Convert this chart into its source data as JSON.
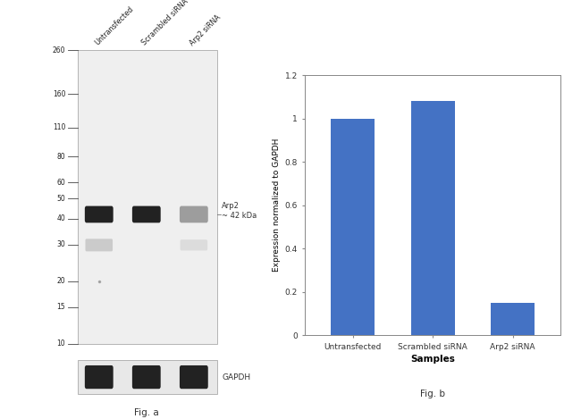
{
  "fig_width": 6.5,
  "fig_height": 4.69,
  "bg_color": "#ffffff",
  "wb_panel": {
    "ladder_marks": [
      260,
      160,
      110,
      80,
      60,
      50,
      40,
      30,
      20,
      15,
      10
    ],
    "band_label": "Arp2\n~ 42 kDa",
    "gapdh_label": "GAPDH",
    "fig_label": "Fig. a",
    "sample_labels": [
      "Untransfected",
      "Scrambled siRNA",
      "Arp2 siRNA"
    ]
  },
  "bar_panel": {
    "categories": [
      "Untransfected",
      "Scrambled siRNA",
      "Arp2 siRNA"
    ],
    "values": [
      1.0,
      1.08,
      0.15
    ],
    "bar_color": "#4472c4",
    "ylim": [
      0,
      1.2
    ],
    "yticks": [
      0,
      0.2,
      0.4,
      0.6,
      0.8,
      1.0,
      1.2
    ],
    "ylabel": "Expression normalized to GAPDH",
    "xlabel": "Samples",
    "fig_label": "Fig. b"
  }
}
